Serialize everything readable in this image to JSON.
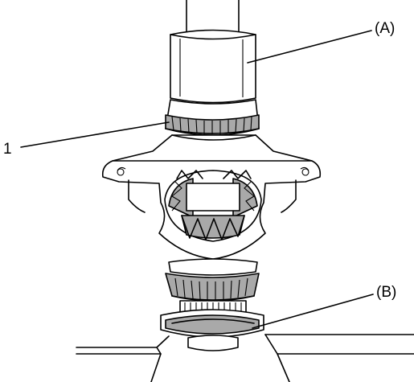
{
  "figure": {
    "callouts": {
      "label_a": "(A)",
      "label_b": "(B)",
      "label_1": "1"
    },
    "colors": {
      "line": "#000000",
      "background": "#ffffff",
      "shade": "#a9a9a9"
    }
  }
}
